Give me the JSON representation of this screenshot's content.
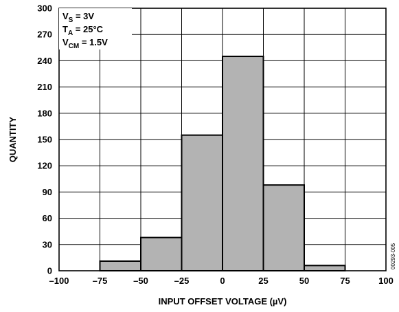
{
  "chart_data": {
    "type": "bar",
    "bins": [
      {
        "from": -100,
        "to": -75,
        "value": 0
      },
      {
        "from": -75,
        "to": -50,
        "value": 11
      },
      {
        "from": -50,
        "to": -25,
        "value": 38
      },
      {
        "from": -25,
        "to": 0,
        "value": 155
      },
      {
        "from": 0,
        "to": 25,
        "value": 245
      },
      {
        "from": 25,
        "to": 50,
        "value": 98
      },
      {
        "from": 50,
        "to": 75,
        "value": 6
      },
      {
        "from": 75,
        "to": 100,
        "value": 0
      }
    ],
    "xlabel": "INPUT OFFSET VOLTAGE  (µV)",
    "ylabel": "QUANTITY",
    "xlim": [
      -100,
      100
    ],
    "ylim": [
      0,
      300
    ],
    "x_ticks": [
      "–100",
      "–75",
      "–50",
      "–25",
      "0",
      "25",
      "50",
      "75",
      "100"
    ],
    "x_tick_values": [
      -100,
      -75,
      -50,
      -25,
      0,
      25,
      50,
      75,
      100
    ],
    "y_ticks": [
      "0",
      "30",
      "60",
      "90",
      "120",
      "150",
      "180",
      "210",
      "240",
      "270",
      "300"
    ],
    "y_tick_values": [
      0,
      30,
      60,
      90,
      120,
      150,
      180,
      210,
      240,
      270,
      300
    ],
    "grid": true,
    "bar_color": "#b3b3b3",
    "conditions": [
      {
        "main": "V",
        "sub": "S",
        "rest": " = 3V"
      },
      {
        "main": "T",
        "sub": "A",
        "rest": " = 25°C"
      },
      {
        "main": "V",
        "sub": "CM",
        "rest": " = 1.5V"
      }
    ],
    "figure_id": "00293-005"
  }
}
